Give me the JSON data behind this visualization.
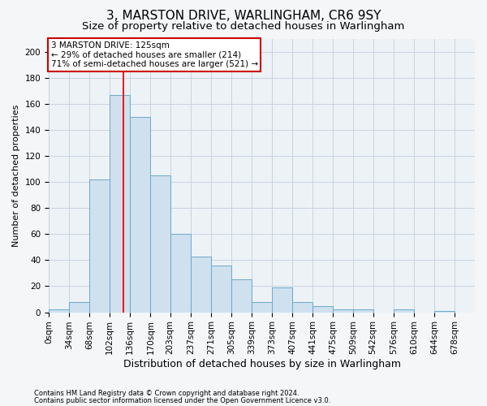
{
  "title": "3, MARSTON DRIVE, WARLINGHAM, CR6 9SY",
  "subtitle": "Size of property relative to detached houses in Warlingham",
  "xlabel": "Distribution of detached houses by size in Warlingham",
  "ylabel": "Number of detached properties",
  "footnote1": "Contains HM Land Registry data © Crown copyright and database right 2024.",
  "footnote2": "Contains public sector information licensed under the Open Government Licence v3.0.",
  "bar_color": "#cfe0ef",
  "bar_edge_color": "#6aaac8",
  "grid_color": "#c8d4e0",
  "background_color": "#edf2f7",
  "fig_background": "#f4f6f8",
  "red_line_x": 125,
  "bin_width": 34,
  "bin_starts": [
    0,
    34,
    68,
    102,
    136,
    170,
    203,
    237,
    271,
    305,
    339,
    373,
    407,
    441,
    475,
    509,
    542,
    576,
    610,
    644
  ],
  "bin_labels": [
    "0sqm",
    "34sqm",
    "68sqm",
    "102sqm",
    "136sqm",
    "170sqm",
    "203sqm",
    "237sqm",
    "271sqm",
    "305sqm",
    "339sqm",
    "373sqm",
    "407sqm",
    "441sqm",
    "475sqm",
    "509sqm",
    "542sqm",
    "576sqm",
    "610sqm",
    "644sqm",
    "678sqm"
  ],
  "counts": [
    2,
    8,
    102,
    167,
    150,
    105,
    60,
    43,
    36,
    25,
    8,
    19,
    8,
    5,
    2,
    2,
    0,
    2,
    0,
    1
  ],
  "ylim": [
    0,
    210
  ],
  "yticks": [
    0,
    20,
    40,
    60,
    80,
    100,
    120,
    140,
    160,
    180,
    200
  ],
  "annotation_line1": "3 MARSTON DRIVE: 125sqm",
  "annotation_line2": "← 29% of detached houses are smaller (214)",
  "annotation_line3": "71% of semi-detached houses are larger (521) →",
  "annotation_box_color": "#ffffff",
  "annotation_box_edge": "#cc0000",
  "title_fontsize": 11,
  "subtitle_fontsize": 9.5,
  "xlabel_fontsize": 9,
  "ylabel_fontsize": 8,
  "tick_fontsize": 7.5,
  "annot_fontsize": 7.5,
  "footnote_fontsize": 6
}
